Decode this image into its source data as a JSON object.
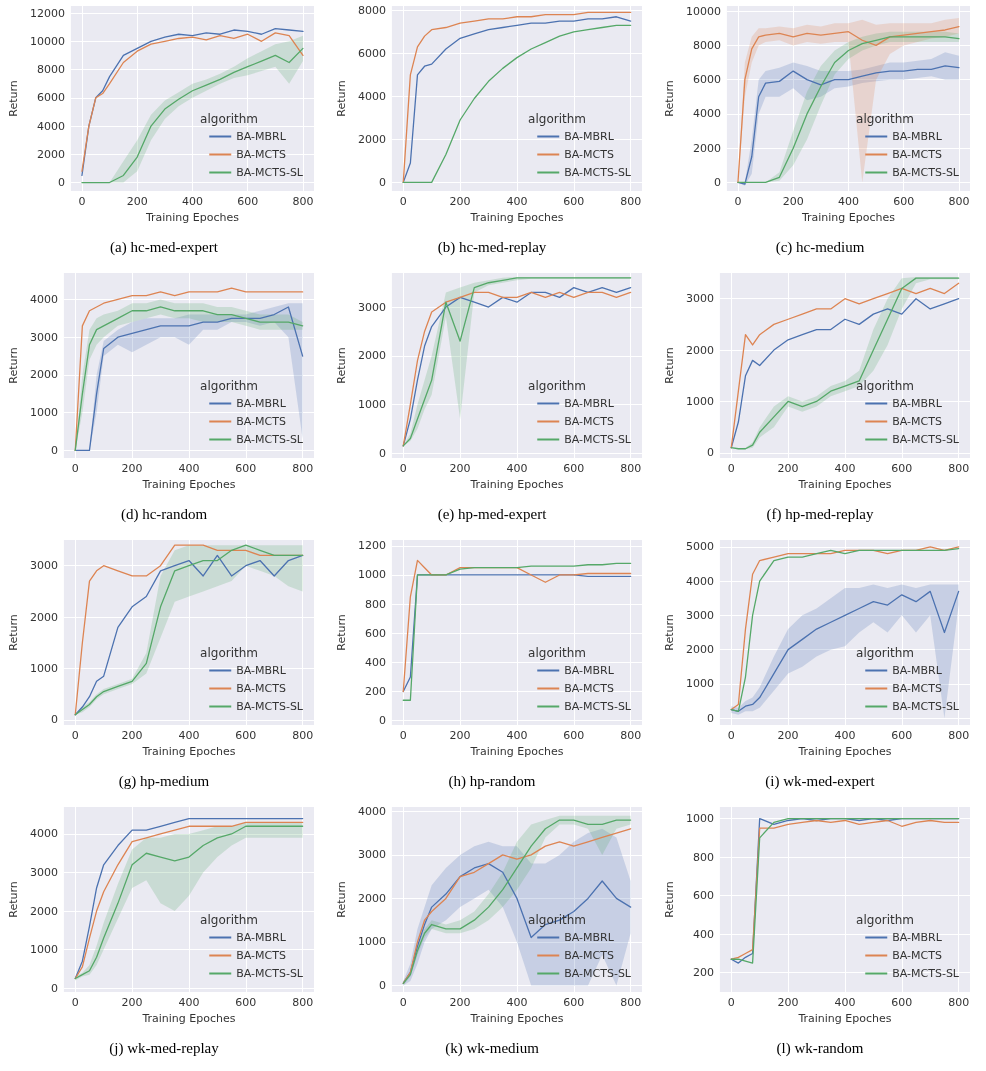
{
  "chart_data": [
    {
      "type": "line",
      "title": "(a) hc-med-expert",
      "xlabel": "Training Epoches",
      "ylabel": "Return",
      "legend_title": "algorithm",
      "legend": "bottom right",
      "grid": true,
      "marker": "none",
      "line_style": "solid",
      "xlim": [
        -40,
        840
      ],
      "xticks": [
        0,
        200,
        400,
        600,
        800
      ],
      "ylim": [
        -600,
        12500
      ],
      "yticks": [
        0,
        2000,
        4000,
        6000,
        8000,
        10000,
        12000
      ],
      "x": [
        0,
        25,
        50,
        75,
        100,
        150,
        200,
        250,
        300,
        350,
        400,
        450,
        500,
        550,
        600,
        650,
        700,
        750,
        800
      ],
      "series": [
        {
          "name": "BA-MBRL",
          "color": "#4c72b0",
          "values": [
            500,
            4000,
            6000,
            6500,
            7500,
            9000,
            9500,
            10000,
            10300,
            10500,
            10400,
            10600,
            10500,
            10800,
            10700,
            10500,
            10900,
            10800,
            10700
          ]
        },
        {
          "name": "BA-MCTS",
          "color": "#dd8452",
          "values": [
            800,
            4000,
            6000,
            6300,
            7000,
            8500,
            9300,
            9800,
            10000,
            10200,
            10300,
            10100,
            10400,
            10200,
            10500,
            10000,
            10600,
            10400,
            9000
          ]
        },
        {
          "name": "BA-MCTS-SL",
          "color": "#55a868",
          "values": [
            0,
            0,
            0,
            0,
            0,
            500,
            1800,
            4000,
            5200,
            5900,
            6500,
            6900,
            7300,
            7800,
            8200,
            8600,
            9000,
            8500,
            9500
          ],
          "lower": [
            0,
            0,
            0,
            0,
            0,
            0,
            800,
            3000,
            4500,
            5400,
            6000,
            6500,
            7000,
            7400,
            7600,
            7900,
            8200,
            7000,
            8600
          ],
          "upper": [
            0,
            0,
            0,
            0,
            0,
            1500,
            3000,
            4800,
            5800,
            6400,
            7000,
            7300,
            7700,
            8200,
            8800,
            9300,
            9800,
            10000,
            10400
          ]
        }
      ]
    },
    {
      "type": "line",
      "title": "(b) hc-med-replay",
      "xlabel": "Training Epoches",
      "ylabel": "Return",
      "legend_title": "algorithm",
      "legend": "bottom right",
      "grid": true,
      "marker": "none",
      "line_style": "solid",
      "xlim": [
        -40,
        840
      ],
      "xticks": [
        0,
        200,
        400,
        600,
        800
      ],
      "ylim": [
        -400,
        8200
      ],
      "yticks": [
        0,
        2000,
        4000,
        6000,
        8000
      ],
      "x": [
        0,
        25,
        50,
        75,
        100,
        150,
        200,
        250,
        300,
        350,
        400,
        450,
        500,
        550,
        600,
        650,
        700,
        750,
        800
      ],
      "series": [
        {
          "name": "BA-MBRL",
          "color": "#4c72b0",
          "values": [
            0,
            900,
            5000,
            5400,
            5500,
            6200,
            6700,
            6900,
            7100,
            7200,
            7300,
            7400,
            7400,
            7500,
            7500,
            7600,
            7600,
            7700,
            7500
          ]
        },
        {
          "name": "BA-MCTS",
          "color": "#dd8452",
          "values": [
            0,
            5000,
            6300,
            6800,
            7100,
            7200,
            7400,
            7500,
            7600,
            7600,
            7700,
            7700,
            7800,
            7800,
            7800,
            7900,
            7900,
            7900,
            7900
          ]
        },
        {
          "name": "BA-MCTS-SL",
          "color": "#55a868",
          "values": [
            0,
            0,
            0,
            0,
            0,
            1300,
            2900,
            3900,
            4700,
            5300,
            5800,
            6200,
            6500,
            6800,
            7000,
            7100,
            7200,
            7300,
            7300
          ]
        }
      ]
    },
    {
      "type": "line",
      "title": "(c) hc-medium",
      "xlabel": "Training Epoches",
      "ylabel": "Return",
      "legend_title": "algorithm",
      "legend": "bottom right",
      "grid": true,
      "marker": "none",
      "line_style": "solid",
      "xlim": [
        -40,
        840
      ],
      "xticks": [
        0,
        200,
        400,
        600,
        800
      ],
      "ylim": [
        -500,
        10300
      ],
      "yticks": [
        0,
        2000,
        4000,
        6000,
        8000,
        10000
      ],
      "x": [
        0,
        25,
        50,
        75,
        100,
        150,
        200,
        250,
        300,
        350,
        400,
        450,
        500,
        550,
        600,
        650,
        700,
        750,
        800
      ],
      "series": [
        {
          "name": "BA-MBRL",
          "color": "#4c72b0",
          "values": [
            0,
            -100,
            1500,
            5000,
            5800,
            5900,
            6500,
            6000,
            5700,
            6000,
            6000,
            6200,
            6400,
            6500,
            6500,
            6600,
            6600,
            6800,
            6700
          ],
          "lower": [
            0,
            -200,
            500,
            4000,
            5000,
            5000,
            5500,
            4800,
            5000,
            5500,
            5600,
            5800,
            5900,
            6000,
            6000,
            6100,
            6200,
            6000,
            6000
          ],
          "upper": [
            0,
            0,
            2500,
            6000,
            6500,
            6700,
            7000,
            6800,
            6500,
            6500,
            6500,
            6600,
            6800,
            7000,
            7000,
            7100,
            7200,
            7600,
            7400
          ]
        },
        {
          "name": "BA-MCTS",
          "color": "#dd8452",
          "values": [
            0,
            6000,
            7800,
            8500,
            8600,
            8700,
            8500,
            8700,
            8600,
            8700,
            8800,
            8300,
            8000,
            8500,
            8600,
            8700,
            8800,
            8900,
            9100
          ],
          "lower": [
            0,
            5000,
            7000,
            8000,
            8200,
            8300,
            8000,
            8200,
            8100,
            8200,
            8200,
            0,
            6000,
            7500,
            8000,
            8200,
            8400,
            8500,
            8700
          ],
          "upper": [
            0,
            7000,
            8500,
            9000,
            9000,
            9100,
            9000,
            9200,
            9100,
            9300,
            9300,
            9500,
            9200,
            9300,
            9300,
            9300,
            9300,
            9500,
            9600
          ]
        },
        {
          "name": "BA-MCTS-SL",
          "color": "#55a868",
          "values": [
            0,
            0,
            0,
            0,
            0,
            300,
            2000,
            4000,
            5600,
            7000,
            7700,
            8100,
            8300,
            8500,
            8500,
            8500,
            8500,
            8500,
            8400
          ],
          "lower": [
            0,
            0,
            0,
            0,
            0,
            100,
            1000,
            2500,
            4500,
            6300,
            7200,
            7700,
            8000,
            8200,
            8200,
            8200,
            8200,
            8200,
            8200
          ],
          "upper": [
            0,
            0,
            0,
            0,
            0,
            600,
            3000,
            5300,
            6800,
            7700,
            8200,
            8500,
            8700,
            8800,
            8800,
            8800,
            8800,
            8800,
            8700
          ]
        }
      ]
    },
    {
      "type": "line",
      "title": "(d) hc-random",
      "xlabel": "Training Epoches",
      "ylabel": "Return",
      "legend_title": "algorithm",
      "legend": "bottom right",
      "grid": true,
      "marker": "none",
      "line_style": "solid",
      "xlim": [
        -40,
        840
      ],
      "xticks": [
        0,
        200,
        400,
        600,
        800
      ],
      "ylim": [
        -200,
        4700
      ],
      "yticks": [
        0,
        1000,
        2000,
        3000,
        4000
      ],
      "x": [
        0,
        25,
        50,
        75,
        100,
        150,
        200,
        250,
        300,
        350,
        400,
        450,
        500,
        550,
        600,
        650,
        700,
        750,
        800
      ],
      "series": [
        {
          "name": "BA-MBRL",
          "color": "#4c72b0",
          "values": [
            0,
            0,
            0,
            1500,
            2700,
            3000,
            3100,
            3200,
            3300,
            3300,
            3300,
            3400,
            3400,
            3500,
            3500,
            3500,
            3600,
            3800,
            2500
          ],
          "lower": [
            0,
            0,
            0,
            1000,
            2500,
            2800,
            2600,
            2800,
            3000,
            3000,
            2800,
            3200,
            3200,
            3400,
            3400,
            3300,
            3400,
            3000,
            300
          ],
          "upper": [
            0,
            0,
            0,
            2000,
            2900,
            3200,
            3400,
            3500,
            3500,
            3500,
            3600,
            3600,
            3600,
            3600,
            3600,
            3700,
            3800,
            3900,
            3900
          ]
        },
        {
          "name": "BA-MCTS",
          "color": "#dd8452",
          "values": [
            0,
            3300,
            3700,
            3800,
            3900,
            4000,
            4100,
            4100,
            4200,
            4100,
            4200,
            4200,
            4200,
            4300,
            4200,
            4200,
            4200,
            4200,
            4200
          ]
        },
        {
          "name": "BA-MCTS-SL",
          "color": "#55a868",
          "values": [
            0,
            1500,
            2800,
            3200,
            3300,
            3500,
            3700,
            3700,
            3800,
            3700,
            3700,
            3700,
            3600,
            3600,
            3500,
            3400,
            3400,
            3400,
            3300
          ],
          "lower": [
            0,
            1000,
            2400,
            2800,
            3000,
            3300,
            3400,
            3500,
            3600,
            3500,
            3500,
            3400,
            3400,
            3400,
            3300,
            3200,
            3200,
            3200,
            3200
          ],
          "upper": [
            0,
            2000,
            3200,
            3500,
            3600,
            3700,
            3900,
            3900,
            4000,
            3900,
            3900,
            3900,
            3800,
            3800,
            3700,
            3600,
            3600,
            3600,
            3400
          ]
        }
      ]
    },
    {
      "type": "line",
      "title": "(e) hp-med-expert",
      "xlabel": "Training Epoches",
      "ylabel": "Return",
      "legend_title": "algorithm",
      "legend": "bottom right",
      "grid": true,
      "marker": "none",
      "line_style": "solid",
      "xlim": [
        -40,
        840
      ],
      "xticks": [
        0,
        200,
        400,
        600,
        800
      ],
      "ylim": [
        -100,
        3700
      ],
      "yticks": [
        0,
        1000,
        2000,
        3000
      ],
      "x": [
        0,
        25,
        50,
        75,
        100,
        150,
        200,
        250,
        300,
        350,
        400,
        450,
        500,
        550,
        600,
        650,
        700,
        750,
        800
      ],
      "series": [
        {
          "name": "BA-MBRL",
          "color": "#4c72b0",
          "values": [
            150,
            700,
            1500,
            2200,
            2600,
            3000,
            3200,
            3100,
            3000,
            3200,
            3100,
            3300,
            3300,
            3200,
            3400,
            3300,
            3400,
            3300,
            3400
          ]
        },
        {
          "name": "BA-MCTS",
          "color": "#dd8452",
          "values": [
            150,
            1000,
            1900,
            2500,
            2900,
            3100,
            3200,
            3300,
            3300,
            3200,
            3200,
            3300,
            3200,
            3300,
            3200,
            3300,
            3300,
            3200,
            3300
          ]
        },
        {
          "name": "BA-MCTS-SL",
          "color": "#55a868",
          "values": [
            150,
            300,
            700,
            1100,
            1500,
            3100,
            2300,
            3400,
            3500,
            3550,
            3600,
            3600,
            3600,
            3600,
            3600,
            3600,
            3600,
            3600,
            3600
          ],
          "lower": [
            150,
            250,
            500,
            900,
            1200,
            2800,
            700,
            3300,
            3450,
            3500,
            3550,
            3580,
            3580,
            3580,
            3580,
            3580,
            3580,
            3580,
            3580
          ],
          "upper": [
            150,
            400,
            1000,
            1500,
            2000,
            3300,
            3400,
            3500,
            3550,
            3600,
            3620,
            3620,
            3620,
            3620,
            3620,
            3620,
            3620,
            3620,
            3620
          ]
        }
      ]
    },
    {
      "type": "line",
      "title": "(f) hp-med-replay",
      "xlabel": "Training Epoches",
      "ylabel": "Return",
      "legend_title": "algorithm",
      "legend": "bottom right",
      "grid": true,
      "marker": "none",
      "line_style": "solid",
      "xlim": [
        -40,
        840
      ],
      "xticks": [
        0,
        200,
        400,
        600,
        800
      ],
      "ylim": [
        -100,
        3500
      ],
      "yticks": [
        0,
        1000,
        2000,
        3000
      ],
      "x": [
        0,
        25,
        50,
        75,
        100,
        150,
        200,
        250,
        300,
        350,
        400,
        450,
        500,
        550,
        600,
        650,
        700,
        750,
        800
      ],
      "series": [
        {
          "name": "BA-MBRL",
          "color": "#4c72b0",
          "values": [
            100,
            600,
            1500,
            1800,
            1700,
            2000,
            2200,
            2300,
            2400,
            2400,
            2600,
            2500,
            2700,
            2800,
            2700,
            3000,
            2800,
            2900,
            3000
          ]
        },
        {
          "name": "BA-MCTS",
          "color": "#dd8452",
          "values": [
            100,
            1200,
            2300,
            2100,
            2300,
            2500,
            2600,
            2700,
            2800,
            2800,
            3000,
            2900,
            3000,
            3100,
            3200,
            3100,
            3200,
            3100,
            3300
          ]
        },
        {
          "name": "BA-MCTS-SL",
          "color": "#55a868",
          "values": [
            100,
            80,
            80,
            150,
            400,
            700,
            1000,
            900,
            1000,
            1200,
            1300,
            1400,
            2000,
            2600,
            3200,
            3400,
            3400,
            3400,
            3400
          ],
          "lower": [
            100,
            70,
            70,
            100,
            300,
            500,
            900,
            800,
            900,
            1100,
            1200,
            1300,
            1600,
            2100,
            2800,
            3300,
            3380,
            3380,
            3380
          ],
          "upper": [
            100,
            90,
            100,
            200,
            500,
            900,
            1100,
            1000,
            1100,
            1300,
            1400,
            1600,
            2400,
            3000,
            3400,
            3420,
            3420,
            3420,
            3420
          ]
        }
      ]
    },
    {
      "type": "line",
      "title": "(g) hp-medium",
      "xlabel": "Training Epoches",
      "ylabel": "Return",
      "legend_title": "algorithm",
      "legend": "bottom right",
      "grid": true,
      "marker": "none",
      "line_style": "solid",
      "xlim": [
        -40,
        840
      ],
      "xticks": [
        0,
        200,
        400,
        600,
        800
      ],
      "ylim": [
        -100,
        3500
      ],
      "yticks": [
        0,
        1000,
        2000,
        3000
      ],
      "x": [
        0,
        25,
        50,
        75,
        100,
        150,
        200,
        250,
        300,
        350,
        400,
        450,
        500,
        550,
        600,
        650,
        700,
        750,
        800
      ],
      "series": [
        {
          "name": "BA-MBRL",
          "color": "#4c72b0",
          "values": [
            100,
            250,
            450,
            750,
            850,
            1800,
            2200,
            2400,
            2900,
            3000,
            3100,
            2800,
            3200,
            2800,
            3000,
            3100,
            2800,
            3100,
            3200
          ]
        },
        {
          "name": "BA-MCTS",
          "color": "#dd8452",
          "values": [
            100,
            1500,
            2700,
            2900,
            3000,
            2900,
            2800,
            2800,
            3000,
            3400,
            3400,
            3400,
            3300,
            3300,
            3300,
            3200,
            3200,
            3200,
            3200
          ]
        },
        {
          "name": "BA-MCTS-SL",
          "color": "#55a868",
          "values": [
            100,
            200,
            300,
            450,
            550,
            650,
            750,
            1100,
            2200,
            2900,
            3000,
            3100,
            3100,
            3300,
            3400,
            3300,
            3200,
            3200,
            3200
          ],
          "lower": [
            100,
            150,
            250,
            400,
            500,
            600,
            700,
            900,
            1600,
            2300,
            2400,
            2500,
            2600,
            2700,
            3000,
            2900,
            2800,
            2600,
            2500
          ],
          "upper": [
            100,
            250,
            350,
            500,
            600,
            700,
            800,
            1300,
            2800,
            3300,
            3400,
            3400,
            3400,
            3400,
            3400,
            3400,
            3400,
            3400,
            3400
          ]
        }
      ]
    },
    {
      "type": "line",
      "title": "(h) hp-random",
      "xlabel": "Training Epoches",
      "ylabel": "Return",
      "legend_title": "algorithm",
      "legend": "bottom right",
      "grid": true,
      "marker": "none",
      "line_style": "solid",
      "xlim": [
        -40,
        840
      ],
      "xticks": [
        0,
        200,
        400,
        600,
        800
      ],
      "ylim": [
        -30,
        1240
      ],
      "yticks": [
        0,
        200,
        400,
        600,
        800,
        1000,
        1200
      ],
      "x": [
        0,
        25,
        50,
        75,
        100,
        150,
        200,
        250,
        300,
        350,
        400,
        450,
        500,
        550,
        600,
        650,
        700,
        750,
        800
      ],
      "series": [
        {
          "name": "BA-MBRL",
          "color": "#4c72b0",
          "values": [
            200,
            300,
            1000,
            1000,
            1000,
            1000,
            1000,
            1000,
            1000,
            1000,
            1000,
            1000,
            1000,
            1000,
            1000,
            990,
            990,
            990,
            990
          ]
        },
        {
          "name": "BA-MCTS",
          "color": "#dd8452",
          "values": [
            200,
            850,
            1100,
            1050,
            1000,
            1000,
            1050,
            1050,
            1050,
            1050,
            1050,
            1000,
            950,
            1000,
            1000,
            1010,
            1010,
            1010,
            1010
          ]
        },
        {
          "name": "BA-MCTS-SL",
          "color": "#55a868",
          "values": [
            140,
            140,
            1000,
            1000,
            1000,
            1000,
            1040,
            1050,
            1050,
            1050,
            1050,
            1060,
            1060,
            1060,
            1060,
            1070,
            1070,
            1080,
            1080
          ]
        }
      ]
    },
    {
      "type": "line",
      "title": "(i) wk-med-expert",
      "xlabel": "Training Epoches",
      "ylabel": "Return",
      "legend_title": "algorithm",
      "legend": "bottom right",
      "grid": true,
      "marker": "none",
      "line_style": "solid",
      "xlim": [
        -40,
        840
      ],
      "xticks": [
        0,
        200,
        400,
        600,
        800
      ],
      "ylim": [
        -200,
        5200
      ],
      "yticks": [
        0,
        1000,
        2000,
        3000,
        4000,
        5000
      ],
      "x": [
        0,
        25,
        50,
        75,
        100,
        150,
        200,
        250,
        300,
        350,
        400,
        450,
        500,
        550,
        600,
        650,
        700,
        750,
        800
      ],
      "series": [
        {
          "name": "BA-MBRL",
          "color": "#4c72b0",
          "values": [
            250,
            200,
            350,
            400,
            600,
            1300,
            2000,
            2300,
            2600,
            2800,
            3000,
            3200,
            3400,
            3300,
            3600,
            3400,
            3700,
            2500,
            3700
          ],
          "lower": [
            150,
            100,
            200,
            200,
            300,
            800,
            1300,
            1500,
            1800,
            2000,
            2100,
            2500,
            2800,
            2500,
            3000,
            2500,
            3000,
            0,
            3300
          ],
          "upper": [
            350,
            300,
            500,
            600,
            900,
            1800,
            2600,
            3000,
            3200,
            3500,
            3800,
            3800,
            3900,
            3800,
            3900,
            3800,
            3900,
            3900,
            3900
          ]
        },
        {
          "name": "BA-MCTS",
          "color": "#dd8452",
          "values": [
            250,
            400,
            2600,
            4200,
            4600,
            4700,
            4800,
            4800,
            4800,
            4800,
            4900,
            4900,
            4900,
            4800,
            4900,
            4900,
            5000,
            4900,
            5000
          ]
        },
        {
          "name": "BA-MCTS-SL",
          "color": "#55a868",
          "values": [
            250,
            200,
            1200,
            3000,
            4000,
            4600,
            4700,
            4700,
            4800,
            4900,
            4800,
            4900,
            4900,
            4900,
            4900,
            4900,
            4900,
            4900,
            4950
          ]
        }
      ]
    },
    {
      "type": "line",
      "title": "(j) wk-med-replay",
      "xlabel": "Training Epoches",
      "ylabel": "Return",
      "legend_title": "algorithm",
      "legend": "bottom right",
      "grid": true,
      "marker": "none",
      "line_style": "solid",
      "xlim": [
        -40,
        840
      ],
      "xticks": [
        0,
        200,
        400,
        600,
        800
      ],
      "ylim": [
        -100,
        4700
      ],
      "yticks": [
        0,
        1000,
        2000,
        3000,
        4000
      ],
      "x": [
        0,
        25,
        50,
        75,
        100,
        150,
        200,
        250,
        300,
        350,
        400,
        450,
        500,
        550,
        600,
        650,
        700,
        750,
        800
      ],
      "series": [
        {
          "name": "BA-MBRL",
          "color": "#4c72b0",
          "values": [
            250,
            700,
            1600,
            2600,
            3200,
            3700,
            4100,
            4100,
            4200,
            4300,
            4400,
            4400,
            4400,
            4400,
            4400,
            4400,
            4400,
            4400,
            4400
          ]
        },
        {
          "name": "BA-MCTS",
          "color": "#dd8452",
          "values": [
            250,
            550,
            1300,
            2000,
            2500,
            3200,
            3800,
            3900,
            4000,
            4100,
            4200,
            4200,
            4200,
            4200,
            4300,
            4300,
            4300,
            4300,
            4300
          ]
        },
        {
          "name": "BA-MCTS-SL",
          "color": "#55a868",
          "values": [
            250,
            350,
            450,
            800,
            1300,
            2200,
            3200,
            3500,
            3400,
            3300,
            3400,
            3700,
            3900,
            4000,
            4200,
            4200,
            4200,
            4200,
            4200
          ],
          "lower": [
            200,
            300,
            350,
            600,
            1000,
            1800,
            2600,
            2800,
            2200,
            2000,
            2400,
            3000,
            3400,
            3700,
            3900,
            3900,
            3900,
            3900,
            3900
          ],
          "upper": [
            300,
            400,
            600,
            1100,
            1700,
            2700,
            3600,
            3900,
            3900,
            4000,
            4000,
            4100,
            4200,
            4200,
            4300,
            4300,
            4300,
            4300,
            4300
          ]
        }
      ]
    },
    {
      "type": "line",
      "title": "(k) wk-medium",
      "xlabel": "Training Epoches",
      "ylabel": "Return",
      "legend_title": "algorithm",
      "legend": "bottom right",
      "grid": true,
      "marker": "none",
      "line_style": "solid",
      "xlim": [
        -40,
        840
      ],
      "xticks": [
        0,
        200,
        400,
        600,
        800
      ],
      "ylim": [
        -150,
        4100
      ],
      "yticks": [
        0,
        1000,
        2000,
        3000,
        4000
      ],
      "x": [
        0,
        25,
        50,
        75,
        100,
        150,
        200,
        250,
        300,
        350,
        400,
        450,
        500,
        550,
        600,
        650,
        700,
        750,
        800
      ],
      "series": [
        {
          "name": "BA-MBRL",
          "color": "#4c72b0",
          "values": [
            50,
            300,
            900,
            1400,
            1800,
            2100,
            2500,
            2700,
            2800,
            2600,
            2000,
            1100,
            1400,
            1500,
            1700,
            2000,
            2400,
            2000,
            1800
          ],
          "lower": [
            0,
            100,
            500,
            1000,
            1300,
            1500,
            1800,
            2000,
            2200,
            1800,
            1000,
            0,
            0,
            0,
            0,
            0,
            700,
            0,
            1200
          ],
          "upper": [
            100,
            500,
            1300,
            1800,
            2300,
            2700,
            3000,
            3200,
            3300,
            3200,
            3200,
            2800,
            2800,
            3000,
            3300,
            3500,
            3600,
            3400,
            2400
          ]
        },
        {
          "name": "BA-MCTS",
          "color": "#dd8452",
          "values": [
            50,
            300,
            1000,
            1500,
            1700,
            2000,
            2500,
            2600,
            2800,
            3000,
            2900,
            3000,
            3200,
            3300,
            3200,
            3300,
            3400,
            3500,
            3600
          ]
        },
        {
          "name": "BA-MCTS-SL",
          "color": "#55a868",
          "values": [
            50,
            250,
            800,
            1200,
            1400,
            1300,
            1300,
            1500,
            1800,
            2200,
            2700,
            3200,
            3600,
            3800,
            3800,
            3700,
            3700,
            3800,
            3800
          ],
          "lower": [
            0,
            200,
            700,
            1100,
            1300,
            1200,
            1200,
            1300,
            1500,
            1800,
            2200,
            2700,
            3400,
            3700,
            3700,
            3600,
            3000,
            3600,
            3700
          ],
          "upper": [
            100,
            300,
            900,
            1300,
            1500,
            1400,
            1500,
            1700,
            2100,
            2600,
            3300,
            3700,
            3800,
            3900,
            3900,
            3900,
            3900,
            3900,
            3900
          ]
        }
      ]
    },
    {
      "type": "line",
      "title": "(l) wk-random",
      "xlabel": "Training Epoches",
      "ylabel": "Return",
      "legend_title": "algorithm",
      "legend": "bottom right",
      "grid": true,
      "marker": "none",
      "line_style": "solid",
      "xlim": [
        -40,
        840
      ],
      "xticks": [
        0,
        200,
        400,
        600,
        800
      ],
      "ylim": [
        100,
        1060
      ],
      "yticks": [
        200,
        400,
        600,
        800,
        1000
      ],
      "x": [
        0,
        25,
        50,
        75,
        100,
        150,
        200,
        250,
        300,
        350,
        400,
        450,
        500,
        550,
        600,
        650,
        700,
        750,
        800
      ],
      "series": [
        {
          "name": "BA-MBRL",
          "color": "#4c72b0",
          "values": [
            270,
            250,
            280,
            300,
            1000,
            970,
            990,
            1000,
            990,
            1000,
            1000,
            990,
            1000,
            990,
            1000,
            1000,
            1000,
            1000,
            1000
          ]
        },
        {
          "name": "BA-MCTS",
          "color": "#dd8452",
          "values": [
            270,
            280,
            300,
            320,
            950,
            950,
            970,
            980,
            990,
            980,
            990,
            970,
            980,
            990,
            960,
            980,
            990,
            980,
            980
          ]
        },
        {
          "name": "BA-MCTS-SL",
          "color": "#55a868",
          "values": [
            270,
            270,
            260,
            250,
            900,
            980,
            1000,
            1000,
            1000,
            1000,
            1000,
            1000,
            1000,
            1000,
            1000,
            1000,
            1000,
            1000,
            1000
          ]
        }
      ]
    }
  ]
}
